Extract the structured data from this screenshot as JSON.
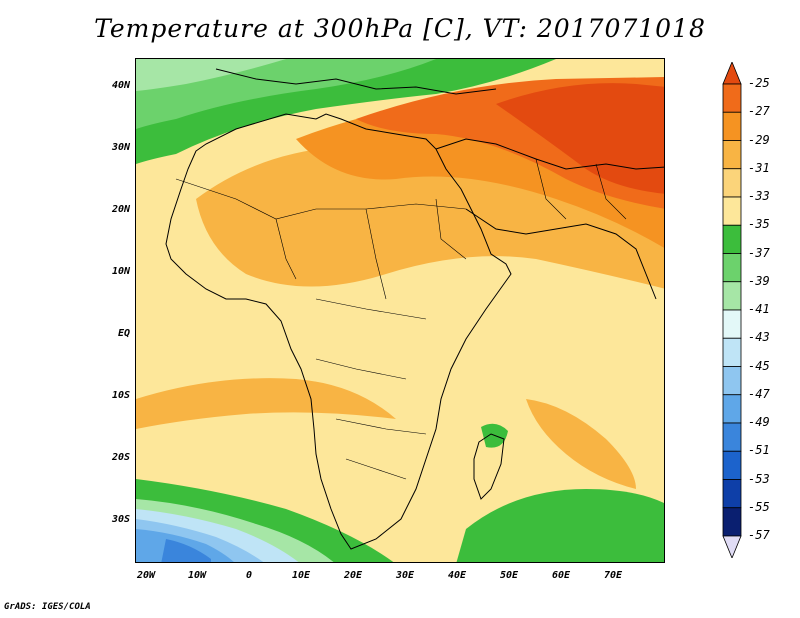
{
  "title": "Temperature at 300hPa [C], VT: 2017071018",
  "credit": "GrADS: IGES/COLA",
  "y_ticks": [
    "40N",
    "30N",
    "20N",
    "10N",
    "EQ",
    "10S",
    "20S",
    "30S"
  ],
  "x_ticks": [
    "20W",
    "10W",
    "0",
    "10E",
    "20E",
    "30E",
    "40E",
    "50E",
    "60E",
    "70E"
  ],
  "colorbar": {
    "labels": [
      "-25",
      "-27",
      "-29",
      "-31",
      "-33",
      "-35",
      "-37",
      "-39",
      "-41",
      "-43",
      "-45",
      "-47",
      "-49",
      "-51",
      "-53",
      "-55",
      "-57"
    ],
    "colors": [
      "#e34a10",
      "#f06b1a",
      "#f59322",
      "#f8b444",
      "#fbd47a",
      "#fde79a",
      "#3cbd3c",
      "#6cd26c",
      "#a6e6a6",
      "#e3f8f8",
      "#bfe4f6",
      "#8fc6f0",
      "#5fa7e8",
      "#3a85dc",
      "#1c63cc",
      "#0e3fa8",
      "#0a1f70",
      "#e0dcf5"
    ]
  }
}
